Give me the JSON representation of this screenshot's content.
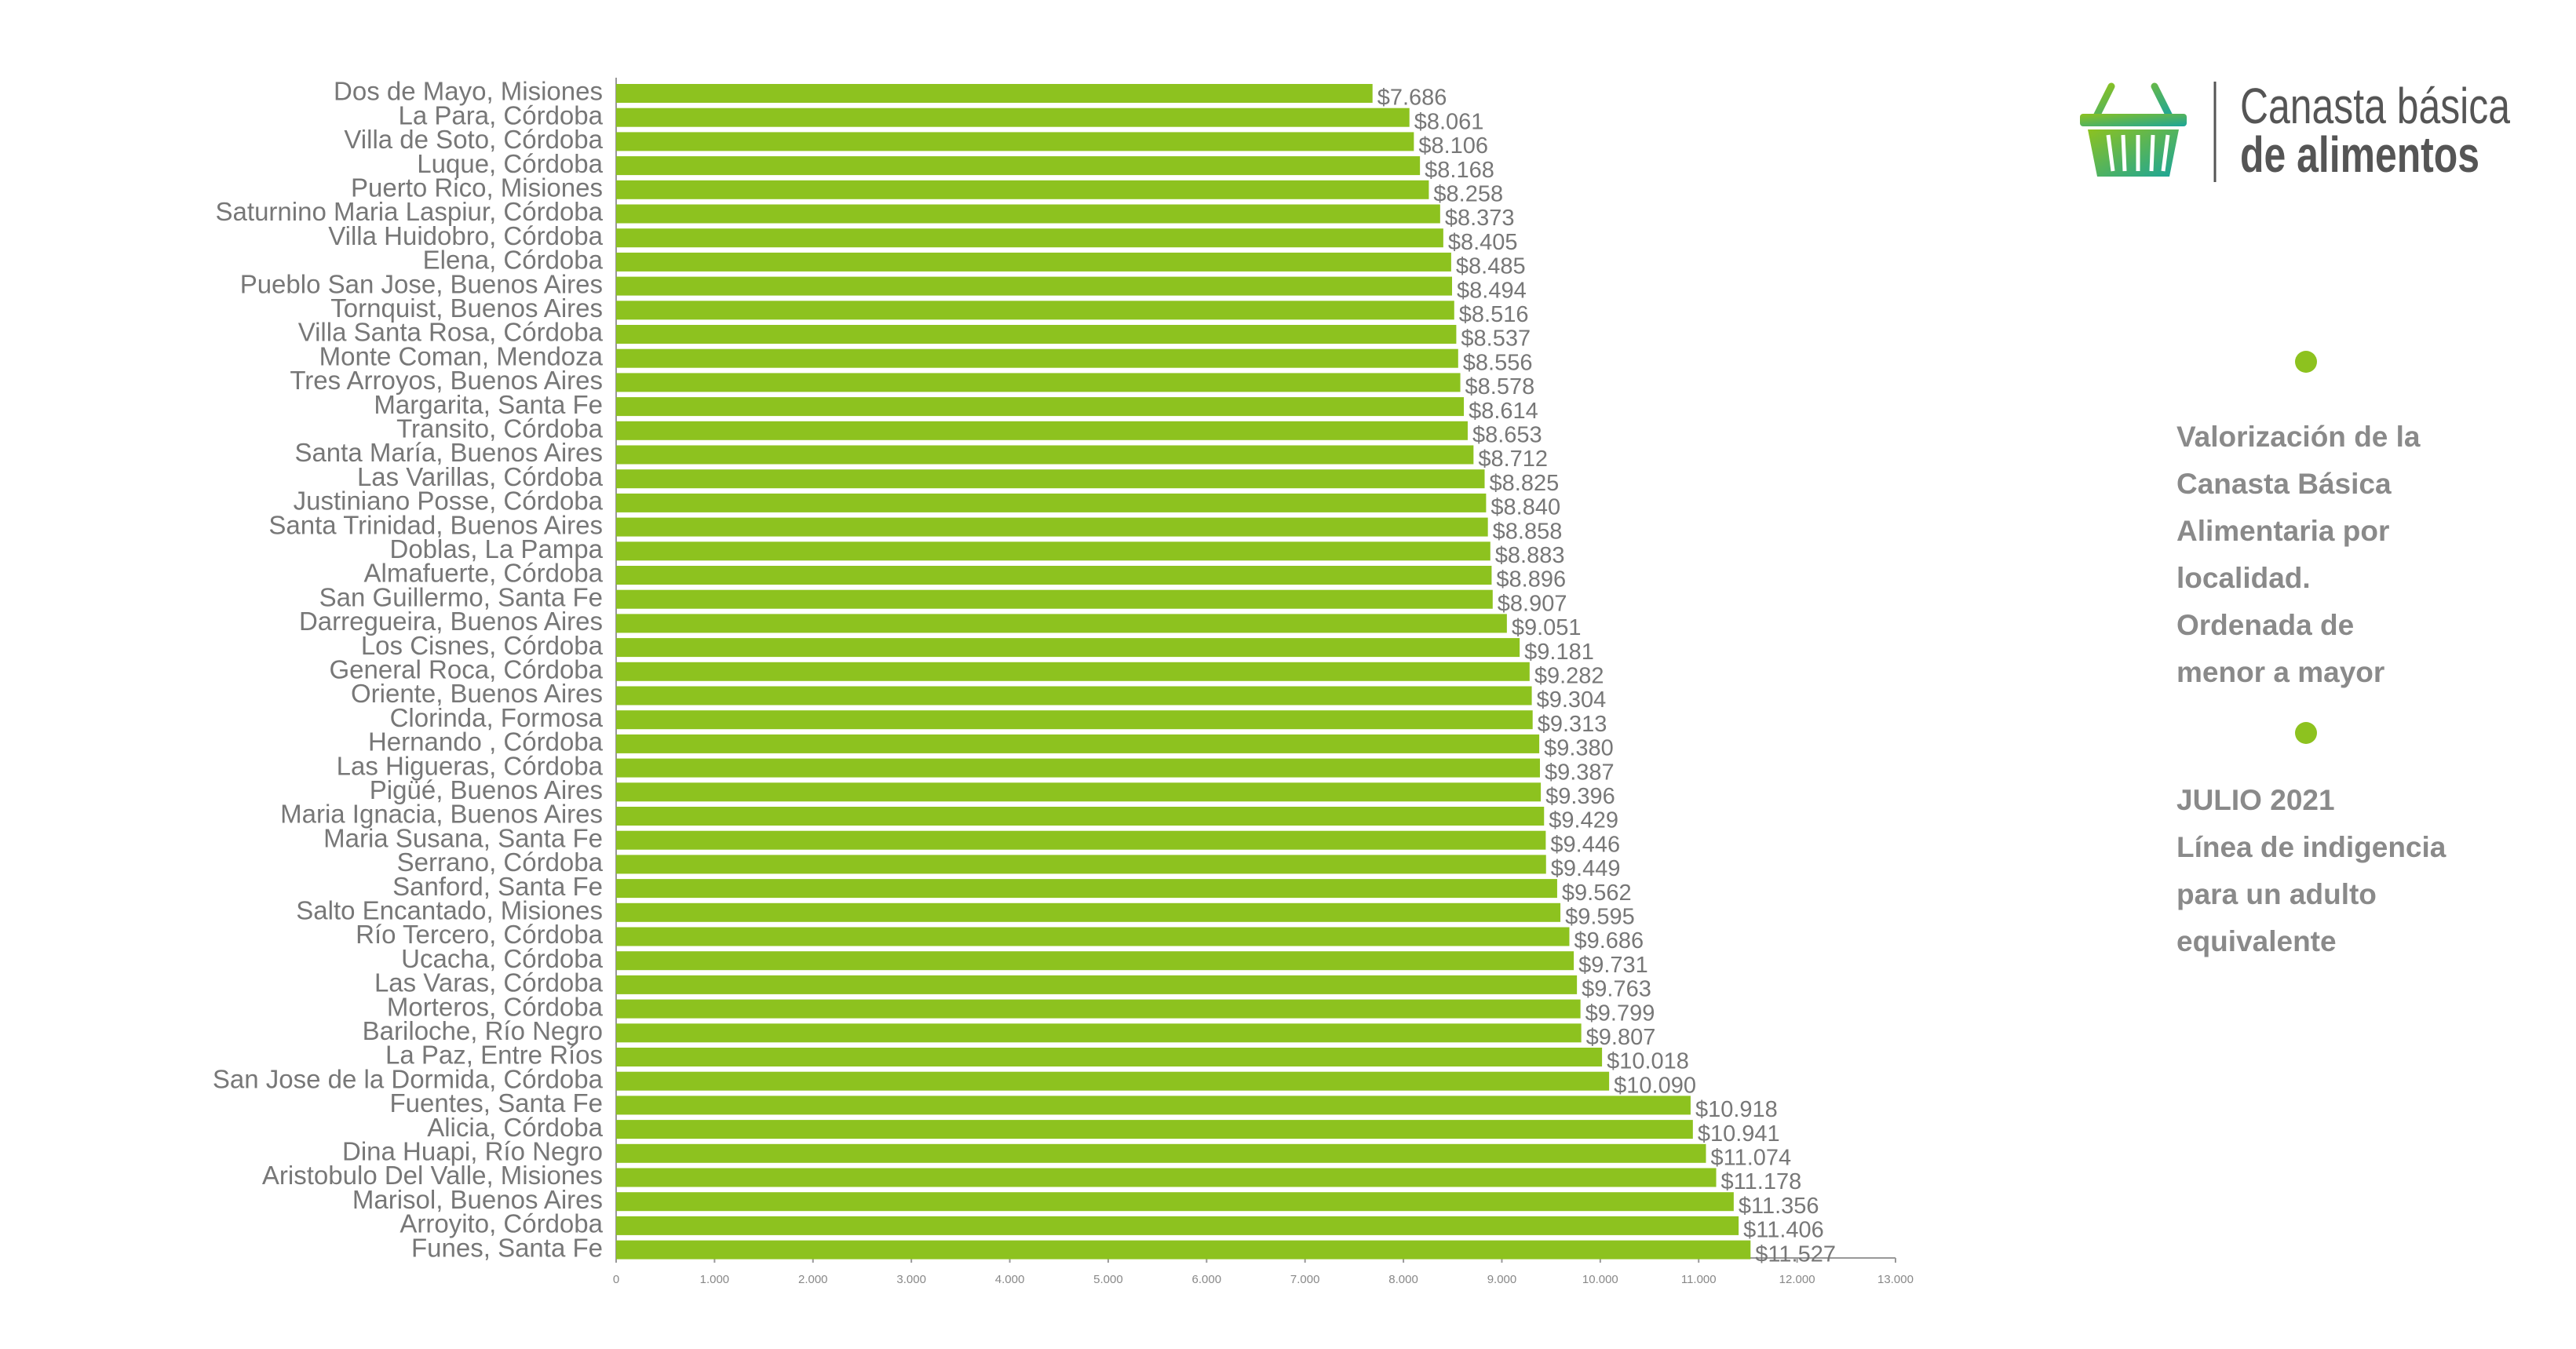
{
  "chart_data": {
    "type": "hbar",
    "categories": [
      "Dos de Mayo, Misiones",
      "La Para, Córdoba",
      "Villa de Soto, Córdoba",
      "Luque, Córdoba",
      "Puerto Rico, Misiones",
      "Saturnino Maria Laspiur, Córdoba",
      "Villa Huidobro, Córdoba",
      "Elena, Córdoba",
      "Pueblo San Jose, Buenos Aires",
      "Tornquist, Buenos Aires",
      "Villa Santa Rosa, Córdoba",
      "Monte Coman, Mendoza",
      "Tres Arroyos, Buenos Aires",
      "Margarita, Santa Fe",
      "Transito, Córdoba",
      "Santa María, Buenos Aires",
      "Las Varillas, Córdoba",
      "Justiniano Posse, Córdoba",
      "Santa Trinidad, Buenos Aires",
      "Doblas, La Pampa",
      "Almafuerte, Córdoba",
      "San Guillermo, Santa Fe",
      "Darregueira, Buenos Aires",
      "Los Cisnes, Córdoba",
      "General Roca, Córdoba",
      "Oriente, Buenos Aires",
      "Clorinda, Formosa",
      "Hernando , Córdoba",
      "Las Higueras, Córdoba",
      "Pigüé, Buenos Aires",
      "Maria Ignacia, Buenos Aires",
      "Maria Susana, Santa Fe",
      "Serrano, Córdoba",
      "Sanford, Santa Fe",
      "Salto Encantado, Misiones",
      "Río Tercero, Córdoba",
      "Ucacha, Córdoba",
      "Las Varas, Córdoba",
      "Morteros, Córdoba",
      "Bariloche, Río Negro",
      "La Paz, Entre Ríos",
      "San Jose de la Dormida, Córdoba",
      "Fuentes, Santa Fe",
      "Alicia, Córdoba",
      "Dina Huapi, Río Negro",
      "Aristobulo Del Valle, Misiones",
      "Marisol, Buenos Aires",
      "Arroyito, Córdoba",
      "Funes, Santa Fe"
    ],
    "values": [
      7686,
      8061,
      8106,
      8168,
      8258,
      8373,
      8405,
      8485,
      8494,
      8516,
      8537,
      8556,
      8578,
      8614,
      8653,
      8712,
      8825,
      8840,
      8858,
      8883,
      8896,
      8907,
      9051,
      9181,
      9282,
      9304,
      9313,
      9380,
      9387,
      9396,
      9429,
      9446,
      9449,
      9562,
      9595,
      9686,
      9731,
      9763,
      9799,
      9807,
      10018,
      10090,
      10918,
      10941,
      11074,
      11178,
      11356,
      11406,
      11527
    ],
    "value_labels": [
      "$7.686",
      "$8.061",
      "$8.106",
      "$8.168",
      "$8.258",
      "$8.373",
      "$8.405",
      "$8.485",
      "$8.494",
      "$8.516",
      "$8.537",
      "$8.556",
      "$8.578",
      "$8.614",
      "$8.653",
      "$8.712",
      "$8.825",
      "$8.840",
      "$8.858",
      "$8.883",
      "$8.896",
      "$8.907",
      "$9.051",
      "$9.181",
      "$9.282",
      "$9.304",
      "$9.313",
      "$9.380",
      "$9.387",
      "$9.396",
      "$9.429",
      "$9.446",
      "$9.449",
      "$9.562",
      "$9.595",
      "$9.686",
      "$9.731",
      "$9.763",
      "$9.799",
      "$9.807",
      "$10.018",
      "$10.090",
      "$10.918",
      "$10.941",
      "$11.074",
      "$11.178",
      "$11.356",
      "$11.406",
      "$11.527"
    ],
    "color": "#8dc21f",
    "xlim": [
      0,
      13000
    ],
    "xticks": [
      0,
      {
        "value": 1000,
        "label": "1.000"
      },
      {
        "value": 2000,
        "label": "2.000"
      },
      {
        "value": 3000,
        "label": "3.000"
      },
      {
        "value": 4000,
        "label": "4.000"
      },
      {
        "value": 5000,
        "label": "5.000"
      },
      {
        "value": 6000,
        "label": "6.000"
      },
      {
        "value": 7000,
        "label": "7.000"
      },
      {
        "value": 8000,
        "label": "8.000"
      },
      {
        "value": 9000,
        "label": "9.000"
      },
      {
        "value": 10000,
        "label": "10.000"
      },
      {
        "value": 11000,
        "label": "11.000"
      },
      {
        "value": 12000,
        "label": "12.000"
      },
      {
        "value": 13000,
        "label": "13.000"
      }
    ],
    "grid": false,
    "logo_text": [
      "Canasta básica",
      "de alimentos"
    ],
    "annotations": [
      [
        "Valorización de la",
        "Canasta Básica",
        "Alimentaria por",
        "localidad.",
        "Ordenada de",
        "menor a mayor"
      ],
      [
        "JULIO 2021",
        "Línea de indigencia",
        "para un adulto",
        "equivalente"
      ]
    ]
  }
}
